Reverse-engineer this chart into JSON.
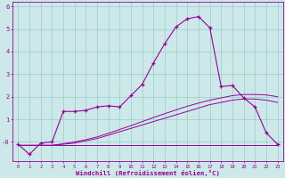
{
  "xlabel": "Windchill (Refroidissement éolien,°C)",
  "bg_color": "#cce8e8",
  "line_color": "#990099",
  "grid_color": "#99cccc",
  "x_values": [
    0,
    1,
    2,
    3,
    4,
    5,
    6,
    7,
    8,
    9,
    10,
    11,
    12,
    13,
    14,
    15,
    16,
    17,
    18,
    19,
    20,
    21,
    22,
    23
  ],
  "line1_y": [
    -0.1,
    -0.55,
    -0.05,
    0.0,
    1.35,
    1.35,
    1.4,
    1.55,
    1.6,
    1.55,
    2.05,
    2.55,
    3.5,
    4.35,
    5.1,
    5.45,
    5.55,
    5.05,
    2.45,
    2.5,
    1.95,
    1.55,
    0.4,
    -0.1
  ],
  "line2_y": [
    -0.15,
    -0.15,
    -0.15,
    -0.15,
    -0.1,
    -0.05,
    0.05,
    0.15,
    0.3,
    0.45,
    0.6,
    0.75,
    0.9,
    1.05,
    1.2,
    1.35,
    1.5,
    1.65,
    1.75,
    1.85,
    1.9,
    1.9,
    1.85,
    1.75
  ],
  "line3_y": [
    -0.15,
    -0.15,
    -0.15,
    -0.15,
    -0.08,
    0.0,
    0.1,
    0.22,
    0.38,
    0.55,
    0.72,
    0.9,
    1.08,
    1.25,
    1.42,
    1.58,
    1.72,
    1.85,
    1.95,
    2.05,
    2.1,
    2.1,
    2.08,
    2.0
  ],
  "line4_y": [
    -0.15,
    -0.15,
    -0.15,
    -0.15,
    -0.15,
    -0.15,
    -0.15,
    -0.15,
    -0.15,
    -0.15,
    -0.15,
    -0.15,
    -0.15,
    -0.15,
    -0.15,
    -0.15,
    -0.15,
    -0.15,
    -0.15,
    -0.15,
    -0.15,
    -0.15,
    -0.15,
    -0.15
  ],
  "ylim": [
    -0.85,
    6.2
  ],
  "xlim": [
    -0.5,
    23.5
  ]
}
